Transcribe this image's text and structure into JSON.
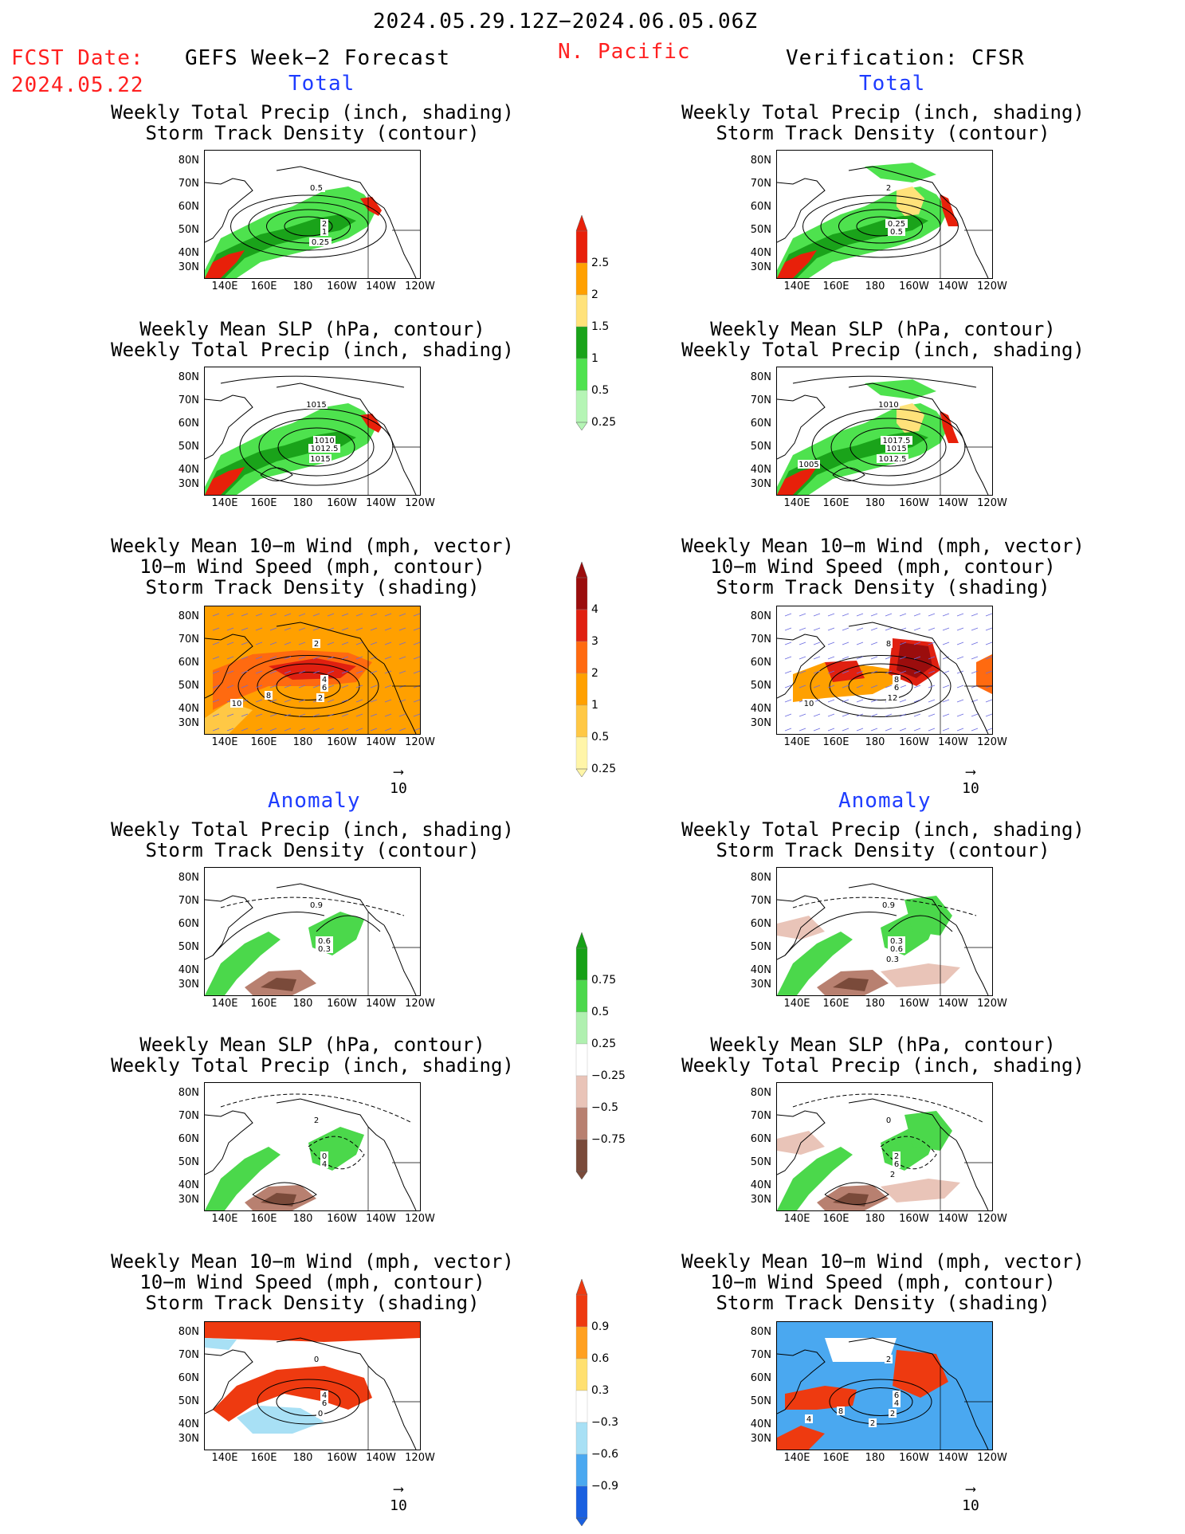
{
  "header": {
    "date_range": "2024.05.29.12Z−2024.06.05.06Z",
    "fcst_label": "FCST Date:",
    "fcst_date": "2024.05.22",
    "left_title": "GEFS Week−2 Forecast",
    "region": "N. Pacific",
    "right_title": "Verification: CFSR"
  },
  "sections": {
    "total": "Total",
    "anomaly": "Anomaly"
  },
  "panel_titles": {
    "precip_storm": [
      "Weekly Total Precip (inch, shading)",
      "Storm Track Density (contour)"
    ],
    "slp_precip": [
      "Weekly Mean SLP (hPa, contour)",
      "Weekly Total Precip (inch, shading)"
    ],
    "wind_storm": [
      "Weekly Mean 10−m Wind (mph, vector)",
      "10−m Wind Speed (mph, contour)",
      "Storm Track Density (shading)"
    ]
  },
  "axes": {
    "lat_ticks": [
      "80N",
      "70N",
      "60N",
      "50N",
      "40N",
      "30N"
    ],
    "lon_ticks": [
      "140E",
      "160E",
      "180",
      "160W",
      "140W",
      "120W"
    ]
  },
  "vector_ref": "10",
  "colorbars": {
    "precip_total": {
      "labels": [
        "2.5",
        "2",
        "1.5",
        "1",
        "0.5",
        "0.25"
      ],
      "colors": [
        "#e8200a",
        "#ffa000",
        "#ffe27a",
        "#1aa31a",
        "#4ee24e",
        "#b5f5b5"
      ]
    },
    "storm_total": {
      "labels": [
        "4",
        "3",
        "2",
        "1",
        "0.5",
        "0.25"
      ],
      "colors": [
        "#9b0d0d",
        "#e02010",
        "#ff6a10",
        "#ffa000",
        "#ffc845",
        "#fff5a8"
      ]
    },
    "precip_anom": {
      "labels": [
        "0.75",
        "0.5",
        "0.25",
        "−0.25",
        "−0.5",
        "−0.75"
      ],
      "colors": [
        "#16a016",
        "#4bd84b",
        "#b0f0b0",
        "#ffffff",
        "#e9c4b8",
        "#b88070",
        "#7a4a3a"
      ]
    },
    "storm_anom": {
      "labels": [
        "0.9",
        "0.6",
        "0.3",
        "−0.3",
        "−0.6",
        "−0.9"
      ],
      "colors": [
        "#ee3a10",
        "#ffa020",
        "#ffe070",
        "#ffffff",
        "#a8e0f5",
        "#4aa8f0",
        "#1a60e0"
      ]
    }
  },
  "contour_labels": {
    "t1l": [
      "0.5",
      "2",
      "1",
      "0.25"
    ],
    "t1r": [
      "2",
      "0.25",
      "0.5"
    ],
    "t2l": [
      "1015",
      "1010",
      "1012.5",
      "1015"
    ],
    "t2r": [
      "1010",
      "1017.5",
      "1015",
      "1012.5",
      "1005"
    ],
    "t3l": [
      "2",
      "4",
      "6",
      "2",
      "10",
      "8"
    ],
    "t3r": [
      "8",
      "8",
      "6",
      "12",
      "10"
    ],
    "a1l": [
      "0.9",
      "0.6",
      "0.3"
    ],
    "a1r": [
      "0.9",
      "0.3",
      "0.6",
      "0.3"
    ],
    "a2l": [
      "2",
      "0",
      "4"
    ],
    "a2r": [
      "0",
      "2",
      "6",
      "2"
    ],
    "a3l": [
      "0",
      "4",
      "6",
      "0"
    ],
    "a3r": [
      "2",
      "6",
      "4",
      "2",
      "4",
      "8",
      "2"
    ]
  }
}
